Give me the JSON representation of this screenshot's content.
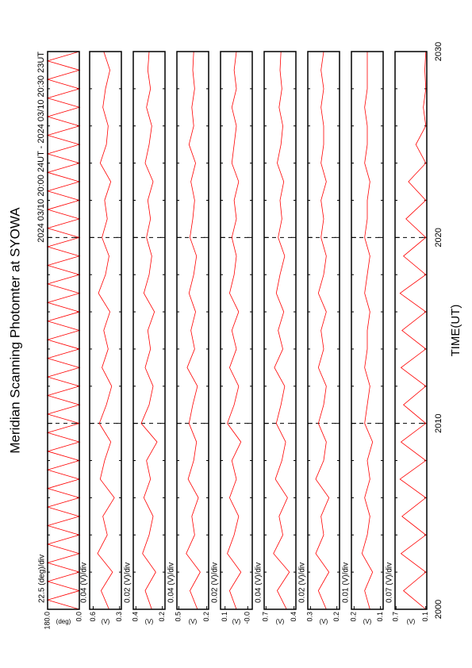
{
  "chart_data": [
    {
      "type": "line",
      "title": "Meridian Scanning Photomter at SYOWA",
      "subtitle": "2024 03/10 20:00 24UT - 2024 03/10 20:30 23UT",
      "scale_label": "22.5 (deg)/div",
      "ylabel": "(deg)",
      "color": "#ff0000",
      "xlim": [
        2000,
        2030
      ],
      "xticks": [
        2000,
        2010,
        2020,
        2030
      ],
      "ylim": [
        0,
        180
      ],
      "yticks": [
        {
          "value": 0,
          "label": "0.0"
        },
        {
          "value": 180,
          "label": "180.0"
        }
      ],
      "x": [
        2000,
        2000.5,
        2001,
        2001.5,
        2002,
        2002.5,
        2003,
        2003.5,
        2004,
        2004.5,
        2005,
        2005.5,
        2006,
        2006.5,
        2007,
        2007.5,
        2008,
        2008.5,
        2009,
        2009.5,
        2010,
        2010.5,
        2011,
        2011.5,
        2012,
        2012.5,
        2013,
        2013.5,
        2014,
        2014.5,
        2015,
        2015.5,
        2016,
        2016.5,
        2017,
        2017.5,
        2018,
        2018.5,
        2019,
        2019.5,
        2020,
        2020.5,
        2021,
        2021.5,
        2022,
        2022.5,
        2023,
        2023.5,
        2024,
        2024.5,
        2025,
        2025.5,
        2026,
        2026.5,
        2027,
        2027.5,
        2028,
        2028.5,
        2029,
        2029.5,
        2030
      ],
      "values": [
        0,
        180,
        0,
        180,
        0,
        180,
        0,
        180,
        0,
        180,
        0,
        180,
        0,
        180,
        0,
        180,
        0,
        180,
        0,
        180,
        0,
        180,
        0,
        180,
        0,
        180,
        0,
        180,
        0,
        180,
        0,
        180,
        0,
        180,
        0,
        180,
        0,
        180,
        0,
        180,
        0,
        180,
        0,
        180,
        0,
        180,
        0,
        180,
        0,
        180,
        0,
        180,
        0,
        180,
        0,
        180,
        0,
        180,
        0,
        180,
        0
      ]
    },
    {
      "type": "line",
      "scale_label": "0.04 (V)/div",
      "ylabel": "(V)",
      "color": "#ff0000",
      "xlim": [
        2000,
        2030
      ],
      "xticks": [
        2000,
        2010,
        2020,
        2030
      ],
      "ylim": [
        0.28,
        0.64
      ],
      "yticks": [
        0.3,
        0.6
      ],
      "x": [
        2000,
        2001,
        2002,
        2003,
        2004,
        2005,
        2006,
        2007,
        2008,
        2009,
        2010,
        2011,
        2012,
        2013,
        2014,
        2015,
        2016,
        2017,
        2018,
        2019,
        2020,
        2021,
        2022,
        2023,
        2024,
        2025,
        2026,
        2027,
        2028,
        2029,
        2030
      ],
      "values": [
        0.42,
        0.51,
        0.38,
        0.55,
        0.44,
        0.49,
        0.36,
        0.52,
        0.47,
        0.4,
        0.53,
        0.45,
        0.39,
        0.5,
        0.43,
        0.48,
        0.41,
        0.54,
        0.46,
        0.42,
        0.5,
        0.44,
        0.47,
        0.4,
        0.52,
        0.45,
        0.43,
        0.49,
        0.46,
        0.41,
        0.48
      ]
    },
    {
      "type": "line",
      "scale_label": "0.02 (V)/div",
      "ylabel": "(V)",
      "color": "#ff0000",
      "xlim": [
        2000,
        2030
      ],
      "xticks": [
        2000,
        2010,
        2020,
        2030
      ],
      "ylim": [
        0.18,
        0.42
      ],
      "yticks": [
        0.2,
        0.4
      ],
      "x": [
        2000,
        2001,
        2002,
        2003,
        2004,
        2005,
        2006,
        2007,
        2008,
        2009,
        2010,
        2011,
        2012,
        2013,
        2014,
        2015,
        2016,
        2017,
        2018,
        2019,
        2020,
        2021,
        2022,
        2023,
        2024,
        2025,
        2026,
        2027,
        2028,
        2029,
        2030
      ],
      "values": [
        0.28,
        0.33,
        0.25,
        0.35,
        0.3,
        0.27,
        0.34,
        0.29,
        0.32,
        0.24,
        0.36,
        0.3,
        0.27,
        0.33,
        0.29,
        0.31,
        0.26,
        0.34,
        0.3,
        0.28,
        0.32,
        0.29,
        0.31,
        0.27,
        0.33,
        0.3,
        0.28,
        0.32,
        0.29,
        0.31,
        0.3
      ]
    },
    {
      "type": "line",
      "scale_label": "0.04 (V)/div",
      "ylabel": "(V)",
      "color": "#ff0000",
      "xlim": [
        2000,
        2030
      ],
      "xticks": [
        2000,
        2010,
        2020,
        2030
      ],
      "ylim": [
        0.18,
        0.52
      ],
      "yticks": [
        0.2,
        0.5
      ],
      "x": [
        2000,
        2001,
        2002,
        2003,
        2004,
        2005,
        2006,
        2007,
        2008,
        2009,
        2010,
        2011,
        2012,
        2013,
        2014,
        2015,
        2016,
        2017,
        2018,
        2019,
        2020,
        2021,
        2022,
        2023,
        2024,
        2025,
        2026,
        2027,
        2028,
        2029,
        2030
      ],
      "values": [
        0.3,
        0.38,
        0.27,
        0.42,
        0.33,
        0.36,
        0.29,
        0.4,
        0.34,
        0.31,
        0.39,
        0.35,
        0.3,
        0.41,
        0.33,
        0.37,
        0.32,
        0.39,
        0.34,
        0.31,
        0.38,
        0.35,
        0.33,
        0.37,
        0.32,
        0.39,
        0.34,
        0.36,
        0.33,
        0.35,
        0.34
      ]
    },
    {
      "type": "line",
      "scale_label": "0.02 (V)/div",
      "ylabel": "(V)",
      "color": "#ff0000",
      "xlim": [
        2000,
        2030
      ],
      "xticks": [
        2000,
        2010,
        2020,
        2030
      ],
      "ylim": [
        -0.02,
        0.12
      ],
      "yticks": [
        {
          "value": 0,
          "label": "-0.0"
        },
        0.1
      ],
      "x": [
        2000,
        2001,
        2002,
        2003,
        2004,
        2005,
        2006,
        2007,
        2008,
        2009,
        2010,
        2011,
        2012,
        2013,
        2014,
        2015,
        2016,
        2017,
        2018,
        2019,
        2020,
        2021,
        2022,
        2023,
        2024,
        2025,
        2026,
        2027,
        2028,
        2029,
        2030
      ],
      "values": [
        0.05,
        0.08,
        0.03,
        0.09,
        0.06,
        0.04,
        0.08,
        0.05,
        0.07,
        0.03,
        0.09,
        0.06,
        0.04,
        0.08,
        0.05,
        0.07,
        0.04,
        0.08,
        0.06,
        0.05,
        0.07,
        0.05,
        0.06,
        0.04,
        0.07,
        0.06,
        0.05,
        0.07,
        0.05,
        0.06,
        0.05
      ]
    },
    {
      "type": "line",
      "scale_label": "0.04 (V)/div",
      "ylabel": "(V)",
      "color": "#ff0000",
      "xlim": [
        2000,
        2030
      ],
      "xticks": [
        2000,
        2010,
        2020,
        2030
      ],
      "ylim": [
        0.38,
        0.72
      ],
      "yticks": [
        0.4,
        0.7
      ],
      "x": [
        2000,
        2001,
        2002,
        2003,
        2004,
        2005,
        2006,
        2007,
        2008,
        2009,
        2010,
        2011,
        2012,
        2013,
        2014,
        2015,
        2016,
        2017,
        2018,
        2019,
        2020,
        2021,
        2022,
        2023,
        2024,
        2025,
        2026,
        2027,
        2028,
        2029,
        2030
      ],
      "values": [
        0.48,
        0.58,
        0.45,
        0.62,
        0.52,
        0.56,
        0.47,
        0.6,
        0.53,
        0.49,
        0.59,
        0.54,
        0.5,
        0.61,
        0.52,
        0.57,
        0.51,
        0.59,
        0.55,
        0.5,
        0.57,
        0.53,
        0.55,
        0.51,
        0.58,
        0.54,
        0.52,
        0.56,
        0.53,
        0.55,
        0.54
      ]
    },
    {
      "type": "line",
      "scale_label": "0.02 (V)/div",
      "ylabel": "(V)",
      "color": "#ff0000",
      "xlim": [
        2000,
        2030
      ],
      "xticks": [
        2000,
        2010,
        2020,
        2030
      ],
      "ylim": [
        0.19,
        0.31
      ],
      "yticks": [
        0.2,
        0.3
      ],
      "x": [
        2000,
        2001,
        2002,
        2003,
        2004,
        2005,
        2006,
        2007,
        2008,
        2009,
        2010,
        2011,
        2012,
        2013,
        2014,
        2015,
        2016,
        2017,
        2018,
        2019,
        2020,
        2021,
        2022,
        2023,
        2024,
        2025,
        2026,
        2027,
        2028,
        2029,
        2030
      ],
      "values": [
        0.24,
        0.27,
        0.23,
        0.28,
        0.25,
        0.26,
        0.23,
        0.28,
        0.25,
        0.24,
        0.27,
        0.25,
        0.24,
        0.27,
        0.25,
        0.26,
        0.24,
        0.27,
        0.25,
        0.24,
        0.26,
        0.25,
        0.26,
        0.24,
        0.26,
        0.25,
        0.25,
        0.26,
        0.25,
        0.26,
        0.25
      ]
    },
    {
      "type": "line",
      "scale_label": "0.01 (V)/div",
      "ylabel": "(V)",
      "color": "#ff0000",
      "xlim": [
        2000,
        2030
      ],
      "xticks": [
        2000,
        2010,
        2020,
        2030
      ],
      "ylim": [
        0.09,
        0.21
      ],
      "yticks": [
        0.1,
        0.2
      ],
      "x": [
        2000,
        2001,
        2002,
        2003,
        2004,
        2005,
        2006,
        2007,
        2008,
        2009,
        2010,
        2011,
        2012,
        2013,
        2014,
        2015,
        2016,
        2017,
        2018,
        2019,
        2020,
        2021,
        2022,
        2023,
        2024,
        2025,
        2026,
        2027,
        2028,
        2029,
        2030
      ],
      "values": [
        0.14,
        0.16,
        0.13,
        0.17,
        0.15,
        0.14,
        0.16,
        0.14,
        0.15,
        0.13,
        0.16,
        0.15,
        0.14,
        0.16,
        0.15,
        0.15,
        0.14,
        0.16,
        0.15,
        0.14,
        0.16,
        0.15,
        0.15,
        0.14,
        0.16,
        0.15,
        0.15,
        0.16,
        0.15,
        0.15,
        0.15
      ]
    },
    {
      "type": "line",
      "scale_label": "0.07 (V)/div",
      "ylabel": "(V)",
      "xlabel": "TIME(UT)",
      "color": "#ff0000",
      "xlim": [
        2000,
        2030
      ],
      "xticks": [
        2000,
        2010,
        2020,
        2030
      ],
      "ylim": [
        0.08,
        0.72
      ],
      "yticks": [
        0.1,
        0.7
      ],
      "x": [
        2000,
        2001,
        2002,
        2003,
        2004,
        2005,
        2006,
        2007,
        2008,
        2009,
        2010,
        2011,
        2012,
        2013,
        2014,
        2015,
        2016,
        2017,
        2018,
        2019,
        2020,
        2021,
        2022,
        2023,
        2024,
        2025,
        2026,
        2027,
        2028,
        2029,
        2030
      ],
      "values": [
        0.1,
        0.55,
        0.1,
        0.6,
        0.1,
        0.58,
        0.1,
        0.62,
        0.1,
        0.6,
        0.1,
        0.55,
        0.1,
        0.6,
        0.1,
        0.58,
        0.1,
        0.62,
        0.1,
        0.55,
        0.1,
        0.5,
        0.1,
        0.45,
        0.1,
        0.3,
        0.1,
        0.15,
        0.1,
        0.12,
        0.1
      ]
    }
  ]
}
